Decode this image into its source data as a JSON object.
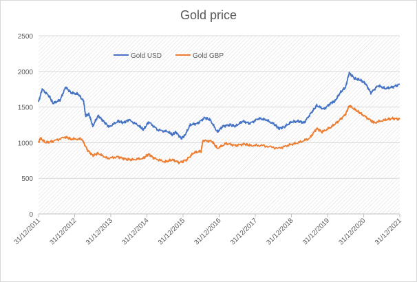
{
  "chart_data": {
    "type": "line",
    "title": "Gold price",
    "xlabel": "",
    "ylabel": "",
    "ylim": [
      0,
      2500
    ],
    "xlim": [
      2012.0,
      2022.0
    ],
    "yticks": [
      "0",
      "500",
      "1000",
      "1500",
      "2000",
      "2500"
    ],
    "ytick_values": [
      0,
      500,
      1000,
      1500,
      2000,
      2500
    ],
    "xticks": [
      "31/12/2011",
      "31/12/2012",
      "31/12/2013",
      "31/12/2014",
      "31/12/2015",
      "31/12/2016",
      "31/12/2017",
      "31/12/2018",
      "31/12/2019",
      "31/12/2020",
      "31/12/2021"
    ],
    "grid": true,
    "legend_position": "top-left",
    "series": [
      {
        "name": "Gold USD",
        "color": "#4472c4",
        "x": [
          2012.0,
          2012.1,
          2012.3,
          2012.4,
          2012.6,
          2012.75,
          2012.9,
          2013.1,
          2013.25,
          2013.3,
          2013.4,
          2013.5,
          2013.65,
          2013.8,
          2013.95,
          2014.2,
          2014.35,
          2014.5,
          2014.8,
          2014.9,
          2015.05,
          2015.3,
          2015.6,
          2015.7,
          2015.8,
          2015.95,
          2016.05,
          2016.2,
          2016.4,
          2016.6,
          2016.75,
          2016.95,
          2017.1,
          2017.3,
          2017.45,
          2017.65,
          2017.85,
          2018.1,
          2018.3,
          2018.55,
          2018.65,
          2018.8,
          2019.0,
          2019.2,
          2019.35,
          2019.55,
          2019.7,
          2019.9,
          2020.1,
          2020.2,
          2020.35,
          2020.5,
          2020.6,
          2020.75,
          2020.9,
          2021.05,
          2021.2,
          2021.4,
          2021.6,
          2021.8,
          2022.0
        ],
        "values": [
          1570,
          1750,
          1650,
          1550,
          1600,
          1780,
          1700,
          1680,
          1580,
          1380,
          1400,
          1230,
          1380,
          1300,
          1220,
          1300,
          1280,
          1320,
          1230,
          1180,
          1290,
          1180,
          1150,
          1110,
          1150,
          1060,
          1100,
          1250,
          1270,
          1350,
          1320,
          1150,
          1230,
          1250,
          1230,
          1300,
          1270,
          1340,
          1320,
          1250,
          1200,
          1220,
          1290,
          1300,
          1280,
          1420,
          1520,
          1470,
          1560,
          1580,
          1700,
          1780,
          1980,
          1900,
          1880,
          1830,
          1700,
          1800,
          1760,
          1780,
          1820
        ]
      },
      {
        "name": "Gold GBP",
        "color": "#ed7d31",
        "x": [
          2012.0,
          2012.05,
          2012.2,
          2012.4,
          2012.75,
          2012.9,
          2013.2,
          2013.35,
          2013.5,
          2013.65,
          2013.9,
          2014.2,
          2014.4,
          2014.6,
          2014.9,
          2015.05,
          2015.2,
          2015.5,
          2015.7,
          2015.9,
          2016.1,
          2016.3,
          2016.5,
          2016.55,
          2016.8,
          2016.95,
          2017.2,
          2017.45,
          2017.7,
          2017.85,
          2018.2,
          2018.65,
          2018.95,
          2019.2,
          2019.5,
          2019.7,
          2019.85,
          2020.1,
          2020.3,
          2020.5,
          2020.6,
          2020.8,
          2020.95,
          2021.2,
          2021.3,
          2021.6,
          2021.8,
          2022.0
        ],
        "values": [
          1000,
          1060,
          1000,
          1020,
          1080,
          1050,
          1050,
          900,
          820,
          850,
          780,
          800,
          770,
          760,
          780,
          840,
          780,
          730,
          760,
          720,
          760,
          860,
          880,
          1030,
          1020,
          920,
          990,
          960,
          980,
          960,
          960,
          920,
          970,
          1000,
          1060,
          1200,
          1150,
          1220,
          1300,
          1400,
          1520,
          1450,
          1400,
          1310,
          1280,
          1320,
          1340,
          1330
        ]
      }
    ]
  }
}
